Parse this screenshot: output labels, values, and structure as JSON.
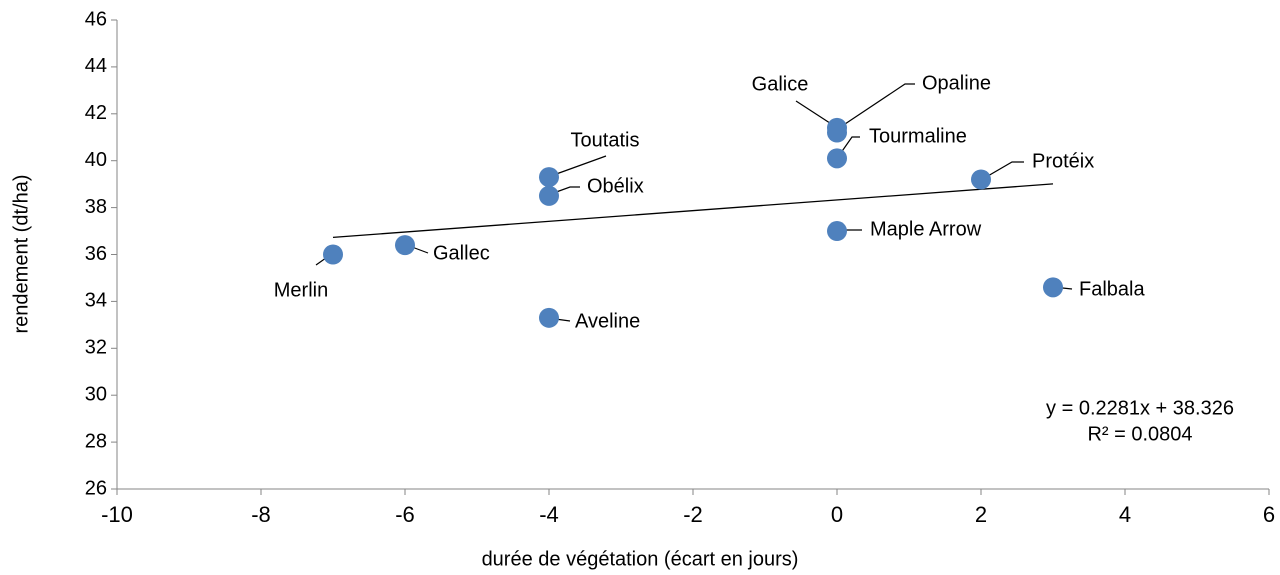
{
  "chart_data": {
    "type": "scatter",
    "xlabel": "durée de végétation (écart en jours)",
    "ylabel": "rendement (dt/ha)",
    "series": [
      {
        "color": "#4f81bd",
        "labels": [
          "Merlin",
          "Gallec",
          "Toutatis",
          "Obélix",
          "Aveline",
          "Galice",
          "Opaline",
          "Tourmaline",
          "Maple Arrow",
          "Protéix",
          "Falbala"
        ],
        "x": [
          -7,
          -6,
          -4,
          -4,
          -4,
          0,
          0,
          0,
          0,
          2,
          3
        ],
        "values": [
          36.0,
          36.4,
          39.3,
          38.5,
          33.3,
          41.4,
          41.2,
          40.1,
          37.0,
          39.2,
          34.6
        ]
      }
    ],
    "trendline": {
      "slope": 0.2281,
      "intercept": 38.326,
      "color": "#000000"
    },
    "annotations": [
      "y = 0.2281x + 38.326",
      "R² = 0.0804"
    ],
    "xlim": [
      -10,
      6
    ],
    "xticks": [
      -10,
      -8,
      -6,
      -4,
      -2,
      0,
      2,
      4,
      6
    ],
    "ylim": [
      26,
      46
    ],
    "yticks": [
      26,
      28,
      30,
      32,
      34,
      36,
      38,
      40,
      42,
      44,
      46
    ],
    "grid": false
  }
}
